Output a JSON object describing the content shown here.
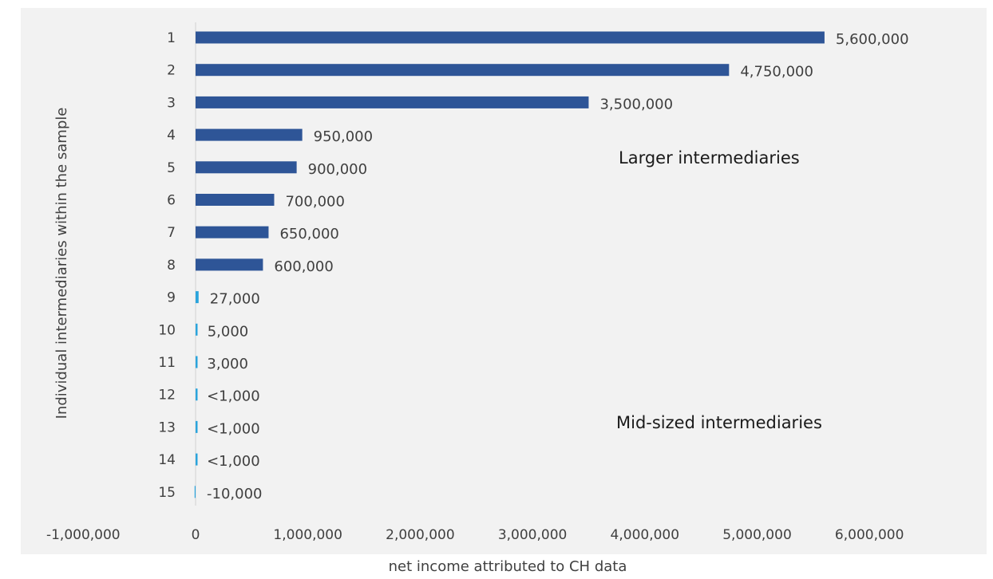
{
  "chart_data": {
    "type": "bar",
    "orientation": "horizontal",
    "categories": [
      "1",
      "2",
      "3",
      "4",
      "5",
      "6",
      "7",
      "8",
      "9",
      "10",
      "11",
      "12",
      "13",
      "14",
      "15"
    ],
    "values": [
      5600000,
      4750000,
      3500000,
      950000,
      900000,
      700000,
      650000,
      600000,
      27000,
      5000,
      3000,
      500,
      500,
      500,
      -10000
    ],
    "data_labels": [
      "5,600,000",
      "4,750,000",
      "3,500,000",
      "950,000",
      "900,000",
      "700,000",
      "650,000",
      "600,000",
      "27,000",
      "5,000",
      "3,000",
      "<1,000",
      "<1,000",
      "<1,000",
      "-10,000"
    ],
    "groups": [
      "large",
      "large",
      "large",
      "large",
      "large",
      "large",
      "large",
      "large",
      "mid",
      "mid",
      "mid",
      "mid",
      "mid",
      "mid",
      "mid"
    ],
    "colors": {
      "large": "#2e5597",
      "mid": "#2aa4dc",
      "background": "#f2f2f2",
      "axis": "#d9d9d9"
    },
    "xlim": [
      -1000000,
      6000000
    ],
    "x_ticks": [
      -1000000,
      0,
      1000000,
      2000000,
      3000000,
      4000000,
      5000000,
      6000000
    ],
    "x_tick_labels": [
      "-1,000,000",
      "0",
      "1,000,000",
      "2,000,000",
      "3,000,000",
      "4,000,000",
      "5,000,000",
      "6,000,000"
    ],
    "xlabel": "net income attributed to CH data",
    "ylabel": "Individual intermediaries within the sample",
    "annotations": [
      {
        "text": "Larger intermediaries",
        "group": "large"
      },
      {
        "text": "Mid-sized intermediaries",
        "group": "mid"
      }
    ],
    "grid": false,
    "legend": "none"
  }
}
